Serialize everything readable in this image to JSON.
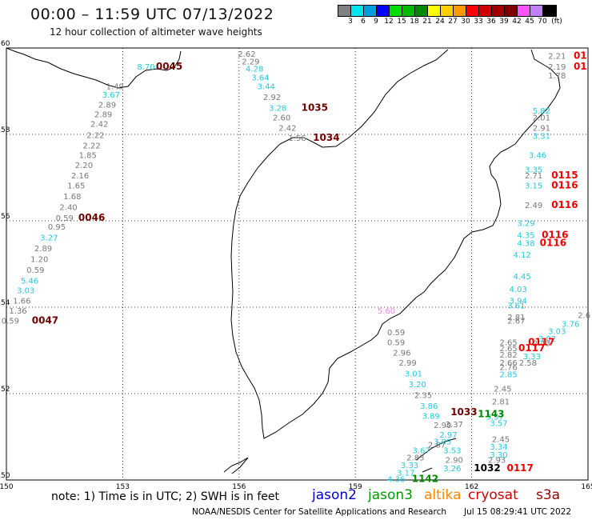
{
  "header": {
    "title": "00:00 – 11:59 UTC 07/13/2022",
    "subtitle": "12 hour collection of altimeter wave heights"
  },
  "legend": {
    "colors": [
      "#808080",
      "#00e5ee",
      "#00a0e0",
      "#0000ff",
      "#00dd00",
      "#00bb00",
      "#008800",
      "#ffff00",
      "#ffd000",
      "#ff9900",
      "#ff0000",
      "#d00000",
      "#a00000",
      "#800000",
      "#ff55ff",
      "#c080ff",
      "#000000"
    ],
    "labels": [
      "3",
      "6",
      "9",
      "12",
      "15",
      "18",
      "21",
      "24",
      "27",
      "30",
      "33",
      "36",
      "39",
      "42",
      "45",
      "70",
      "(ft)"
    ]
  },
  "map": {
    "lon_ticks": [
      "150",
      "153",
      "156",
      "159",
      "162",
      "165"
    ],
    "lat_ticks": [
      "50",
      "52",
      "54",
      "56",
      "58",
      "60"
    ],
    "swh_labels": [
      {
        "text": "2.62",
        "color": "gray",
        "lon": 156.2,
        "lat": 59.8
      },
      {
        "text": "2.29",
        "color": "gray",
        "lon": 156.3,
        "lat": 59.62
      },
      {
        "text": "4.28",
        "color": "cyan",
        "lon": 156.4,
        "lat": 59.45
      },
      {
        "text": "3.64",
        "color": "cyan",
        "lon": 156.55,
        "lat": 59.25
      },
      {
        "text": "3.44",
        "color": "cyan",
        "lon": 156.7,
        "lat": 59.05
      },
      {
        "text": "2.92",
        "color": "gray",
        "lon": 156.85,
        "lat": 58.8
      },
      {
        "text": "3.28",
        "color": "cyan",
        "lon": 157.0,
        "lat": 58.55
      },
      {
        "text": "2.60",
        "color": "gray",
        "lon": 157.1,
        "lat": 58.32
      },
      {
        "text": "2.42",
        "color": "gray",
        "lon": 157.25,
        "lat": 58.08
      },
      {
        "text": "1.56",
        "color": "gray",
        "lon": 157.5,
        "lat": 57.85
      },
      {
        "text": "1.49",
        "color": "gray",
        "lon": 152.8,
        "lat": 59.05
      },
      {
        "text": "3.67",
        "color": "cyan",
        "lon": 152.7,
        "lat": 58.85
      },
      {
        "text": "2.89",
        "color": "gray",
        "lon": 152.6,
        "lat": 58.62
      },
      {
        "text": "2.89",
        "color": "gray",
        "lon": 152.5,
        "lat": 58.4
      },
      {
        "text": "2.42",
        "color": "gray",
        "lon": 152.4,
        "lat": 58.18
      },
      {
        "text": "2.22",
        "color": "gray",
        "lon": 152.3,
        "lat": 57.92
      },
      {
        "text": "2.22",
        "color": "gray",
        "lon": 152.2,
        "lat": 57.68
      },
      {
        "text": "1.85",
        "color": "gray",
        "lon": 152.1,
        "lat": 57.45
      },
      {
        "text": "2.20",
        "color": "gray",
        "lon": 152.0,
        "lat": 57.22
      },
      {
        "text": "2.16",
        "color": "gray",
        "lon": 151.9,
        "lat": 56.98
      },
      {
        "text": "1.65",
        "color": "gray",
        "lon": 151.8,
        "lat": 56.75
      },
      {
        "text": "1.68",
        "color": "gray",
        "lon": 151.7,
        "lat": 56.5
      },
      {
        "text": "2.40",
        "color": "gray",
        "lon": 151.6,
        "lat": 56.25
      },
      {
        "text": "0.59",
        "color": "gray",
        "lon": 151.5,
        "lat": 56.0
      },
      {
        "text": "0.95",
        "color": "gray",
        "lon": 151.3,
        "lat": 55.8
      },
      {
        "text": "3.27",
        "color": "cyan",
        "lon": 151.1,
        "lat": 55.55
      },
      {
        "text": "2.89",
        "color": "gray",
        "lon": 150.95,
        "lat": 55.3
      },
      {
        "text": "1.20",
        "color": "gray",
        "lon": 150.85,
        "lat": 55.05
      },
      {
        "text": "0.59",
        "color": "gray",
        "lon": 150.75,
        "lat": 54.8
      },
      {
        "text": "5.46",
        "color": "cyan",
        "lon": 150.6,
        "lat": 54.55
      },
      {
        "text": "3.03",
        "color": "cyan",
        "lon": 150.5,
        "lat": 54.32
      },
      {
        "text": "1.66",
        "color": "gray",
        "lon": 150.4,
        "lat": 54.08
      },
      {
        "text": "1.36",
        "color": "gray",
        "lon": 150.3,
        "lat": 53.85
      },
      {
        "text": "0.59",
        "color": "gray",
        "lon": 150.1,
        "lat": 53.62
      },
      {
        "text": "8.70",
        "color": "cyan",
        "lon": 153.6,
        "lat": 59.5
      },
      {
        "text": "2.21",
        "color": "gray",
        "lon": 164.2,
        "lat": 59.75
      },
      {
        "text": "2.19",
        "color": "gray",
        "lon": 164.2,
        "lat": 59.5
      },
      {
        "text": "1.78",
        "color": "gray",
        "lon": 164.2,
        "lat": 59.3
      },
      {
        "text": "5.82",
        "color": "cyan",
        "lon": 163.8,
        "lat": 58.48
      },
      {
        "text": "2.01",
        "color": "gray",
        "lon": 163.8,
        "lat": 58.32
      },
      {
        "text": "2.91",
        "color": "gray",
        "lon": 163.8,
        "lat": 58.08
      },
      {
        "text": "3.31",
        "color": "cyan",
        "lon": 163.8,
        "lat": 57.9
      },
      {
        "text": "3.46",
        "color": "cyan",
        "lon": 163.7,
        "lat": 57.45
      },
      {
        "text": "3.35",
        "color": "cyan",
        "lon": 163.6,
        "lat": 57.12
      },
      {
        "text": "2.71",
        "color": "gray",
        "lon": 163.6,
        "lat": 56.98
      },
      {
        "text": "3.15",
        "color": "cyan",
        "lon": 163.6,
        "lat": 56.75
      },
      {
        "text": "2.49",
        "color": "gray",
        "lon": 163.6,
        "lat": 56.3
      },
      {
        "text": "3.29",
        "color": "cyan",
        "lon": 163.4,
        "lat": 55.88
      },
      {
        "text": "4.35",
        "color": "cyan",
        "lon": 163.4,
        "lat": 55.6
      },
      {
        "text": "4.38",
        "color": "cyan",
        "lon": 163.4,
        "lat": 55.42
      },
      {
        "text": "4.12",
        "color": "cyan",
        "lon": 163.3,
        "lat": 55.15
      },
      {
        "text": "4.45",
        "color": "cyan",
        "lon": 163.3,
        "lat": 54.65
      },
      {
        "text": "4.03",
        "color": "cyan",
        "lon": 163.2,
        "lat": 54.35
      },
      {
        "text": "3.94",
        "color": "cyan",
        "lon": 163.2,
        "lat": 54.08
      },
      {
        "text": "3.61",
        "color": "cyan",
        "lon": 163.15,
        "lat": 53.97
      },
      {
        "text": "2.81",
        "color": "gray",
        "lon": 163.15,
        "lat": 53.7
      },
      {
        "text": "2.67",
        "color": "gray",
        "lon": 163.15,
        "lat": 53.62
      },
      {
        "text": "2.65",
        "color": "gray",
        "lon": 162.95,
        "lat": 53.12
      },
      {
        "text": "2.65",
        "color": "gray",
        "lon": 162.95,
        "lat": 52.98
      },
      {
        "text": "2.82",
        "color": "gray",
        "lon": 162.95,
        "lat": 52.83
      },
      {
        "text": "2.66",
        "color": "gray",
        "lon": 162.95,
        "lat": 52.65
      },
      {
        "text": "2.76",
        "color": "gray",
        "lon": 162.95,
        "lat": 52.55
      },
      {
        "text": "2.58",
        "color": "gray",
        "lon": 163.45,
        "lat": 52.65
      },
      {
        "text": "3.33",
        "color": "cyan",
        "lon": 163.55,
        "lat": 52.8
      },
      {
        "text": "2.85",
        "color": "cyan",
        "lon": 162.95,
        "lat": 52.38
      },
      {
        "text": "2.45",
        "color": "gray",
        "lon": 162.8,
        "lat": 52.05
      },
      {
        "text": "2.81",
        "color": "gray",
        "lon": 162.75,
        "lat": 51.75
      },
      {
        "text": "3.57",
        "color": "cyan",
        "lon": 162.6,
        "lat": 51.4
      },
      {
        "text": "3.57",
        "color": "cyan",
        "lon": 162.7,
        "lat": 51.25
      },
      {
        "text": "2.45",
        "color": "gray",
        "lon": 162.75,
        "lat": 50.88
      },
      {
        "text": "3.34",
        "color": "cyan",
        "lon": 162.7,
        "lat": 50.7
      },
      {
        "text": "3.30",
        "color": "cyan",
        "lon": 162.7,
        "lat": 50.52
      },
      {
        "text": "2.93",
        "color": "gray",
        "lon": 162.65,
        "lat": 50.4
      },
      {
        "text": "3.03",
        "color": "cyan",
        "lon": 164.2,
        "lat": 53.38
      },
      {
        "text": "3.02",
        "color": "cyan",
        "lon": 163.95,
        "lat": 53.2
      },
      {
        "text": "3.76",
        "color": "cyan",
        "lon": 164.55,
        "lat": 53.55
      },
      {
        "text": "2.6",
        "color": "gray",
        "lon": 164.9,
        "lat": 53.75
      },
      {
        "text": "2.43",
        "color": "gray",
        "lon": 163.8,
        "lat": 53.1
      },
      {
        "text": "0.59",
        "color": "gray",
        "lon": 160.05,
        "lat": 53.35
      },
      {
        "text": "0.59",
        "color": "gray",
        "lon": 160.05,
        "lat": 53.12
      },
      {
        "text": "2.96",
        "color": "gray",
        "lon": 160.2,
        "lat": 52.88
      },
      {
        "text": "2.99",
        "color": "gray",
        "lon": 160.35,
        "lat": 52.65
      },
      {
        "text": "3.01",
        "color": "cyan",
        "lon": 160.5,
        "lat": 52.4
      },
      {
        "text": "3.20",
        "color": "cyan",
        "lon": 160.6,
        "lat": 52.15
      },
      {
        "text": "2.35",
        "color": "gray",
        "lon": 160.75,
        "lat": 51.9
      },
      {
        "text": "3.86",
        "color": "cyan",
        "lon": 160.9,
        "lat": 51.65
      },
      {
        "text": "3.89",
        "color": "cyan",
        "lon": 160.95,
        "lat": 51.42
      },
      {
        "text": "2.90",
        "color": "gray",
        "lon": 161.25,
        "lat": 51.2
      },
      {
        "text": "2.97",
        "color": "cyan",
        "lon": 161.4,
        "lat": 50.98
      },
      {
        "text": "3.37",
        "color": "gray",
        "lon": 161.55,
        "lat": 51.22
      },
      {
        "text": "2.87",
        "color": "gray",
        "lon": 161.1,
        "lat": 50.75
      },
      {
        "text": "3.03",
        "color": "cyan",
        "lon": 161.25,
        "lat": 50.82
      },
      {
        "text": "3.67",
        "color": "cyan",
        "lon": 160.7,
        "lat": 50.62
      },
      {
        "text": "3.53",
        "color": "cyan",
        "lon": 161.5,
        "lat": 50.62
      },
      {
        "text": "2.83",
        "color": "gray",
        "lon": 160.55,
        "lat": 50.45
      },
      {
        "text": "2.90",
        "color": "gray",
        "lon": 161.55,
        "lat": 50.4
      },
      {
        "text": "3.33",
        "color": "cyan",
        "lon": 160.4,
        "lat": 50.28
      },
      {
        "text": "3.26",
        "color": "cyan",
        "lon": 161.5,
        "lat": 50.2
      },
      {
        "text": "3.17",
        "color": "cyan",
        "lon": 160.3,
        "lat": 50.1
      },
      {
        "text": "4.36",
        "color": "cyan",
        "lon": 160.05,
        "lat": 49.95
      },
      {
        "text": "5.60",
        "color": "pink",
        "lon": 159.8,
        "lat": 53.85
      }
    ],
    "time_labels": [
      {
        "text": "0045",
        "color": "dark",
        "lon": 154.2,
        "lat": 59.5
      },
      {
        "text": "1035",
        "color": "dark",
        "lon": 157.95,
        "lat": 58.55
      },
      {
        "text": "1034",
        "color": "dark",
        "lon": 158.25,
        "lat": 57.85
      },
      {
        "text": "0046",
        "color": "dark",
        "lon": 152.2,
        "lat": 56.0
      },
      {
        "text": "0047",
        "color": "dark",
        "lon": 151.0,
        "lat": 53.62
      },
      {
        "text": "1033",
        "color": "dark",
        "lon": 161.8,
        "lat": 51.5
      },
      {
        "text": "1032",
        "color": "black",
        "lon": 162.4,
        "lat": 50.2
      },
      {
        "text": "01",
        "color": "red",
        "lon": 164.8,
        "lat": 59.75
      },
      {
        "text": "01",
        "color": "red",
        "lon": 164.8,
        "lat": 59.5
      },
      {
        "text": "0115",
        "color": "red",
        "lon": 164.4,
        "lat": 56.98
      },
      {
        "text": "0116",
        "color": "red",
        "lon": 164.4,
        "lat": 56.75
      },
      {
        "text": "0116",
        "color": "red",
        "lon": 164.4,
        "lat": 56.3
      },
      {
        "text": "0116",
        "color": "red",
        "lon": 164.15,
        "lat": 55.6
      },
      {
        "text": "0116",
        "color": "red",
        "lon": 164.1,
        "lat": 55.42
      },
      {
        "text": "0117",
        "color": "red",
        "lon": 163.8,
        "lat": 53.12
      },
      {
        "text": "0117",
        "color": "red",
        "lon": 163.55,
        "lat": 52.98
      },
      {
        "text": "0117",
        "color": "red",
        "lon": 163.25,
        "lat": 50.2
      },
      {
        "text": "1143",
        "color": "green",
        "lon": 162.5,
        "lat": 51.45
      },
      {
        "text": "1142",
        "color": "green",
        "lon": 160.8,
        "lat": 49.95
      }
    ]
  },
  "footer": {
    "note": "note: 1) Time is in UTC; 2) SWH is in feet",
    "satellites": [
      {
        "name": "jason2",
        "color": "#0000cc"
      },
      {
        "name": "jason3",
        "color": "#009900"
      },
      {
        "name": "altika",
        "color": "#ff8800"
      },
      {
        "name": "cryosat",
        "color": "#cc0000"
      },
      {
        "name": "s3a",
        "color": "#990000"
      }
    ],
    "credit": "NOAA/NESDIS Center for Satellite Applications and Research",
    "generated": "Jul 15 08:29:41 UTC 2022"
  }
}
